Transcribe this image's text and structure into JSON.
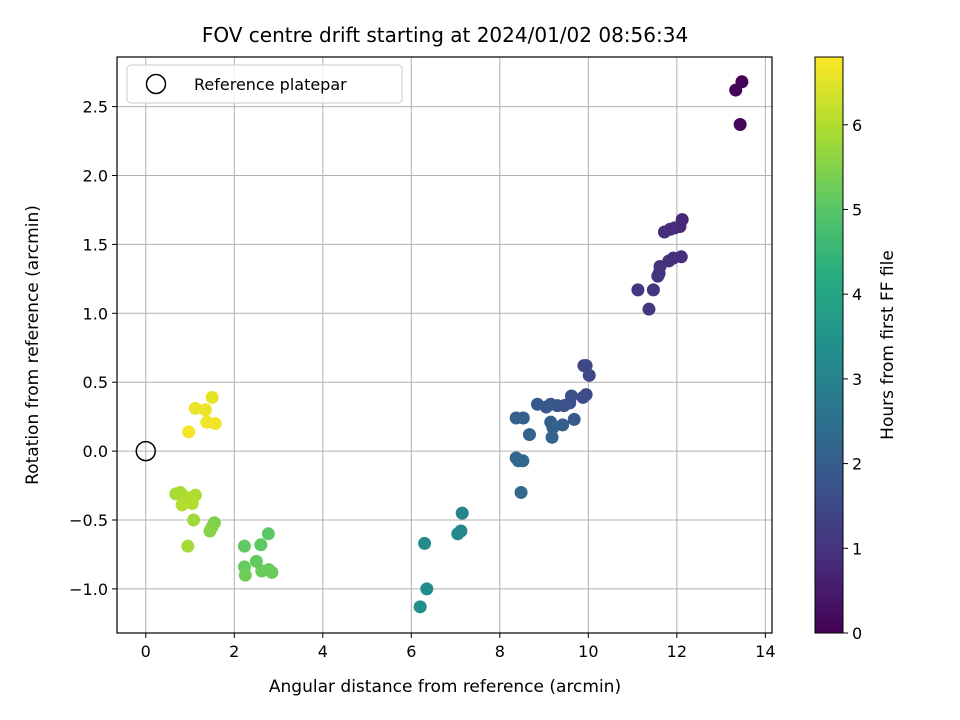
{
  "chart_data": {
    "type": "scatter",
    "title": "FOV centre drift starting at 2024/01/02 08:56:34",
    "xlabel": "Angular distance from reference (arcmin)",
    "ylabel": "Rotation from reference (arcmin)",
    "xlim": [
      -0.65,
      14.15
    ],
    "ylim": [
      -1.32,
      2.86
    ],
    "xticks": [
      0,
      2,
      4,
      6,
      8,
      10,
      12,
      14
    ],
    "yticks": [
      -1.0,
      -0.5,
      0.0,
      0.5,
      1.0,
      1.5,
      2.0,
      2.5
    ],
    "xtick_labels": [
      "0",
      "2",
      "4",
      "6",
      "8",
      "10",
      "12",
      "14"
    ],
    "ytick_labels": [
      "−1.0",
      "−0.5",
      "0.0",
      "0.5",
      "1.0",
      "1.5",
      "2.0",
      "2.5"
    ],
    "grid": true,
    "legend": {
      "placement": "upper-left",
      "entries": [
        {
          "label": "Reference platepar",
          "marker": "open-circle",
          "color": "#000000"
        }
      ]
    },
    "reference_point": {
      "x": 0.0,
      "y": 0.0
    },
    "colorbar": {
      "label": "Hours from first FF file",
      "range": [
        0,
        6.8
      ],
      "ticks": [
        0,
        1,
        2,
        3,
        4,
        5,
        6
      ],
      "tick_labels": [
        "0",
        "1",
        "2",
        "3",
        "4",
        "5",
        "6"
      ],
      "colormap": "viridis"
    },
    "points": [
      {
        "x": 13.47,
        "y": 2.68,
        "c": 0.03
      },
      {
        "x": 13.33,
        "y": 2.62,
        "c": 0.08
      },
      {
        "x": 13.43,
        "y": 2.37,
        "c": 0.12
      },
      {
        "x": 12.12,
        "y": 1.68,
        "c": 0.75
      },
      {
        "x": 12.07,
        "y": 1.63,
        "c": 0.78
      },
      {
        "x": 11.95,
        "y": 1.62,
        "c": 0.82
      },
      {
        "x": 11.85,
        "y": 1.61,
        "c": 0.85
      },
      {
        "x": 11.72,
        "y": 1.59,
        "c": 0.88
      },
      {
        "x": 12.1,
        "y": 1.41,
        "c": 0.9
      },
      {
        "x": 11.92,
        "y": 1.4,
        "c": 0.93
      },
      {
        "x": 11.82,
        "y": 1.38,
        "c": 0.95
      },
      {
        "x": 11.62,
        "y": 1.34,
        "c": 0.98
      },
      {
        "x": 11.6,
        "y": 1.29,
        "c": 1.0
      },
      {
        "x": 11.57,
        "y": 1.27,
        "c": 1.02
      },
      {
        "x": 11.12,
        "y": 1.17,
        "c": 1.05
      },
      {
        "x": 11.47,
        "y": 1.17,
        "c": 1.07
      },
      {
        "x": 11.37,
        "y": 1.03,
        "c": 1.1
      },
      {
        "x": 9.9,
        "y": 0.62,
        "c": 1.45
      },
      {
        "x": 9.95,
        "y": 0.62,
        "c": 1.48
      },
      {
        "x": 10.02,
        "y": 0.55,
        "c": 1.5
      },
      {
        "x": 9.95,
        "y": 0.41,
        "c": 1.55
      },
      {
        "x": 9.88,
        "y": 0.39,
        "c": 1.58
      },
      {
        "x": 9.62,
        "y": 0.4,
        "c": 1.62
      },
      {
        "x": 9.58,
        "y": 0.35,
        "c": 1.65
      },
      {
        "x": 9.45,
        "y": 0.33,
        "c": 1.7
      },
      {
        "x": 9.3,
        "y": 0.33,
        "c": 1.75
      },
      {
        "x": 9.15,
        "y": 0.34,
        "c": 1.8
      },
      {
        "x": 9.05,
        "y": 0.32,
        "c": 1.85
      },
      {
        "x": 8.85,
        "y": 0.34,
        "c": 1.9
      },
      {
        "x": 9.68,
        "y": 0.23,
        "c": 1.95
      },
      {
        "x": 9.42,
        "y": 0.19,
        "c": 2.0
      },
      {
        "x": 9.15,
        "y": 0.21,
        "c": 2.05
      },
      {
        "x": 9.2,
        "y": 0.17,
        "c": 2.08
      },
      {
        "x": 8.53,
        "y": 0.24,
        "c": 2.1
      },
      {
        "x": 8.37,
        "y": 0.24,
        "c": 2.12
      },
      {
        "x": 8.67,
        "y": 0.12,
        "c": 2.15
      },
      {
        "x": 9.18,
        "y": 0.1,
        "c": 2.18
      },
      {
        "x": 8.37,
        "y": -0.05,
        "c": 2.22
      },
      {
        "x": 8.42,
        "y": -0.07,
        "c": 2.25
      },
      {
        "x": 8.52,
        "y": -0.07,
        "c": 2.28
      },
      {
        "x": 8.48,
        "y": -0.3,
        "c": 2.32
      },
      {
        "x": 7.15,
        "y": -0.45,
        "c": 3.05
      },
      {
        "x": 7.12,
        "y": -0.58,
        "c": 3.1
      },
      {
        "x": 7.05,
        "y": -0.6,
        "c": 3.15
      },
      {
        "x": 6.3,
        "y": -0.67,
        "c": 3.2
      },
      {
        "x": 6.35,
        "y": -1.0,
        "c": 3.3
      },
      {
        "x": 6.2,
        "y": -1.13,
        "c": 3.35
      },
      {
        "x": 2.77,
        "y": -0.6,
        "c": 5.05
      },
      {
        "x": 2.6,
        "y": -0.68,
        "c": 5.1
      },
      {
        "x": 2.23,
        "y": -0.69,
        "c": 5.12
      },
      {
        "x": 2.5,
        "y": -0.8,
        "c": 5.15
      },
      {
        "x": 2.23,
        "y": -0.84,
        "c": 5.18
      },
      {
        "x": 2.78,
        "y": -0.86,
        "c": 5.2
      },
      {
        "x": 2.62,
        "y": -0.87,
        "c": 5.22
      },
      {
        "x": 2.85,
        "y": -0.88,
        "c": 5.25
      },
      {
        "x": 2.25,
        "y": -0.9,
        "c": 5.28
      },
      {
        "x": 1.55,
        "y": -0.52,
        "c": 5.45
      },
      {
        "x": 1.5,
        "y": -0.55,
        "c": 5.5
      },
      {
        "x": 1.45,
        "y": -0.58,
        "c": 5.55
      },
      {
        "x": 1.08,
        "y": -0.5,
        "c": 5.8
      },
      {
        "x": 0.95,
        "y": -0.69,
        "c": 5.85
      },
      {
        "x": 0.68,
        "y": -0.31,
        "c": 5.88
      },
      {
        "x": 0.78,
        "y": -0.3,
        "c": 5.9
      },
      {
        "x": 0.88,
        "y": -0.33,
        "c": 5.93
      },
      {
        "x": 0.95,
        "y": -0.34,
        "c": 5.95
      },
      {
        "x": 1.12,
        "y": -0.32,
        "c": 5.97
      },
      {
        "x": 0.98,
        "y": -0.36,
        "c": 5.99
      },
      {
        "x": 1.05,
        "y": -0.38,
        "c": 6.0
      },
      {
        "x": 0.82,
        "y": -0.39,
        "c": 6.02
      },
      {
        "x": 1.5,
        "y": 0.39,
        "c": 6.55
      },
      {
        "x": 1.12,
        "y": 0.31,
        "c": 6.6
      },
      {
        "x": 1.35,
        "y": 0.3,
        "c": 6.62
      },
      {
        "x": 1.38,
        "y": 0.21,
        "c": 6.65
      },
      {
        "x": 1.57,
        "y": 0.2,
        "c": 6.68
      },
      {
        "x": 0.97,
        "y": 0.14,
        "c": 6.7
      }
    ]
  }
}
